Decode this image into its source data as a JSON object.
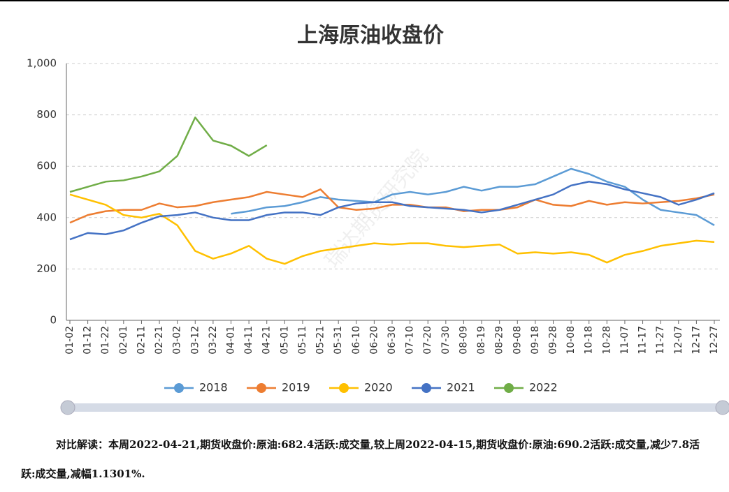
{
  "chart_data": {
    "type": "line",
    "title": "上海原油收盘价",
    "watermark": "瑞达期货研究院",
    "categories": [
      "01-02",
      "01-12",
      "01-22",
      "02-01",
      "02-11",
      "02-21",
      "03-02",
      "03-12",
      "03-22",
      "04-01",
      "04-11",
      "04-21",
      "05-01",
      "05-11",
      "05-21",
      "05-31",
      "06-10",
      "06-20",
      "06-30",
      "07-10",
      "07-20",
      "07-30",
      "08-09",
      "08-19",
      "08-29",
      "09-08",
      "09-18",
      "09-28",
      "10-08",
      "10-18",
      "10-28",
      "11-07",
      "11-17",
      "11-27",
      "12-07",
      "12-17",
      "12-27"
    ],
    "series": [
      {
        "name": "2018",
        "color": "#5b9bd5",
        "values": [
          null,
          null,
          null,
          null,
          null,
          null,
          null,
          null,
          null,
          415,
          425,
          440,
          445,
          460,
          480,
          470,
          465,
          460,
          490,
          500,
          490,
          500,
          520,
          505,
          520,
          520,
          530,
          560,
          590,
          570,
          540,
          520,
          470,
          430,
          420,
          410,
          370
        ]
      },
      {
        "name": "2019",
        "color": "#ed7d31",
        "values": [
          380,
          410,
          425,
          430,
          430,
          455,
          440,
          445,
          460,
          470,
          480,
          500,
          490,
          480,
          510,
          440,
          430,
          435,
          450,
          450,
          440,
          440,
          425,
          430,
          430,
          440,
          470,
          450,
          445,
          465,
          450,
          460,
          455,
          460,
          465,
          475,
          490
        ]
      },
      {
        "name": "2020",
        "color": "#ffc000",
        "values": [
          490,
          470,
          450,
          410,
          400,
          415,
          370,
          270,
          240,
          260,
          290,
          240,
          220,
          250,
          270,
          280,
          290,
          300,
          295,
          300,
          300,
          290,
          285,
          290,
          295,
          260,
          265,
          260,
          265,
          255,
          225,
          255,
          270,
          290,
          300,
          310,
          305
        ]
      },
      {
        "name": "2021",
        "color": "#4472c4",
        "values": [
          315,
          340,
          335,
          350,
          380,
          405,
          410,
          420,
          400,
          390,
          390,
          410,
          420,
          420,
          410,
          440,
          455,
          460,
          460,
          445,
          440,
          435,
          430,
          420,
          430,
          450,
          470,
          490,
          525,
          540,
          530,
          510,
          495,
          480,
          450,
          470,
          495
        ]
      },
      {
        "name": "2022",
        "color": "#70ad47",
        "values": [
          500,
          520,
          540,
          545,
          560,
          580,
          640,
          790,
          700,
          680,
          640,
          682,
          null,
          null,
          null,
          null,
          null,
          null,
          null,
          null,
          null,
          null,
          null,
          null,
          null,
          null,
          null,
          null,
          null,
          null,
          null,
          null,
          null,
          null,
          null,
          null,
          null
        ]
      }
    ],
    "ylim": [
      0,
      1000
    ],
    "yticks": [
      0,
      200,
      400,
      600,
      800,
      {
        "value": 1000,
        "label": "1,000"
      }
    ],
    "grid": true,
    "legend": "bottom"
  },
  "note": "对比解读：本周2022-04-21,期货收盘价:原油:682.4活跃:成交量,较上周2022-04-15,期货收盘价:原油:690.2活跃:成交量,减少7.8活跃:成交量,减幅1.1301%."
}
